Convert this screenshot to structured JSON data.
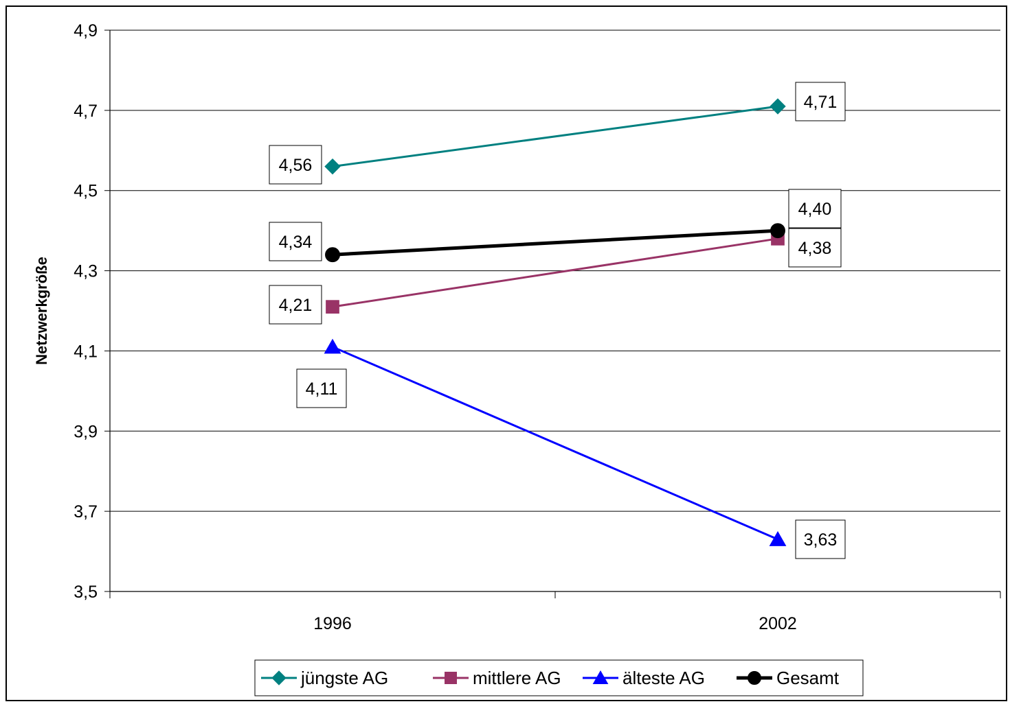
{
  "chart_data": {
    "type": "line",
    "title": "",
    "xlabel": "",
    "ylabel": "Netzwerkgröße",
    "categories": [
      "1996",
      "2002"
    ],
    "ylim": [
      3.5,
      4.9
    ],
    "ytick_step": 0.2,
    "yticks": [
      "3,5",
      "3,7",
      "3,9",
      "4,1",
      "4,3",
      "4,5",
      "4,7",
      "4,9"
    ],
    "grid": true,
    "legend_position": "bottom",
    "series": [
      {
        "name": "jüngste AG",
        "values": [
          4.56,
          4.71
        ],
        "labels": [
          "4,56",
          "4,71"
        ],
        "color": "#008080",
        "marker": "diamond"
      },
      {
        "name": "mittlere AG",
        "values": [
          4.21,
          4.38
        ],
        "labels": [
          "4,21",
          "4,38"
        ],
        "color": "#993366",
        "marker": "square"
      },
      {
        "name": "älteste AG",
        "values": [
          4.11,
          3.63
        ],
        "labels": [
          "4,11",
          "3,63"
        ],
        "color": "#0000FF",
        "marker": "triangle"
      },
      {
        "name": "Gesamt",
        "values": [
          4.34,
          4.4
        ],
        "labels": [
          "4,34",
          "4,40"
        ],
        "color": "#000000",
        "marker": "circle"
      }
    ]
  }
}
